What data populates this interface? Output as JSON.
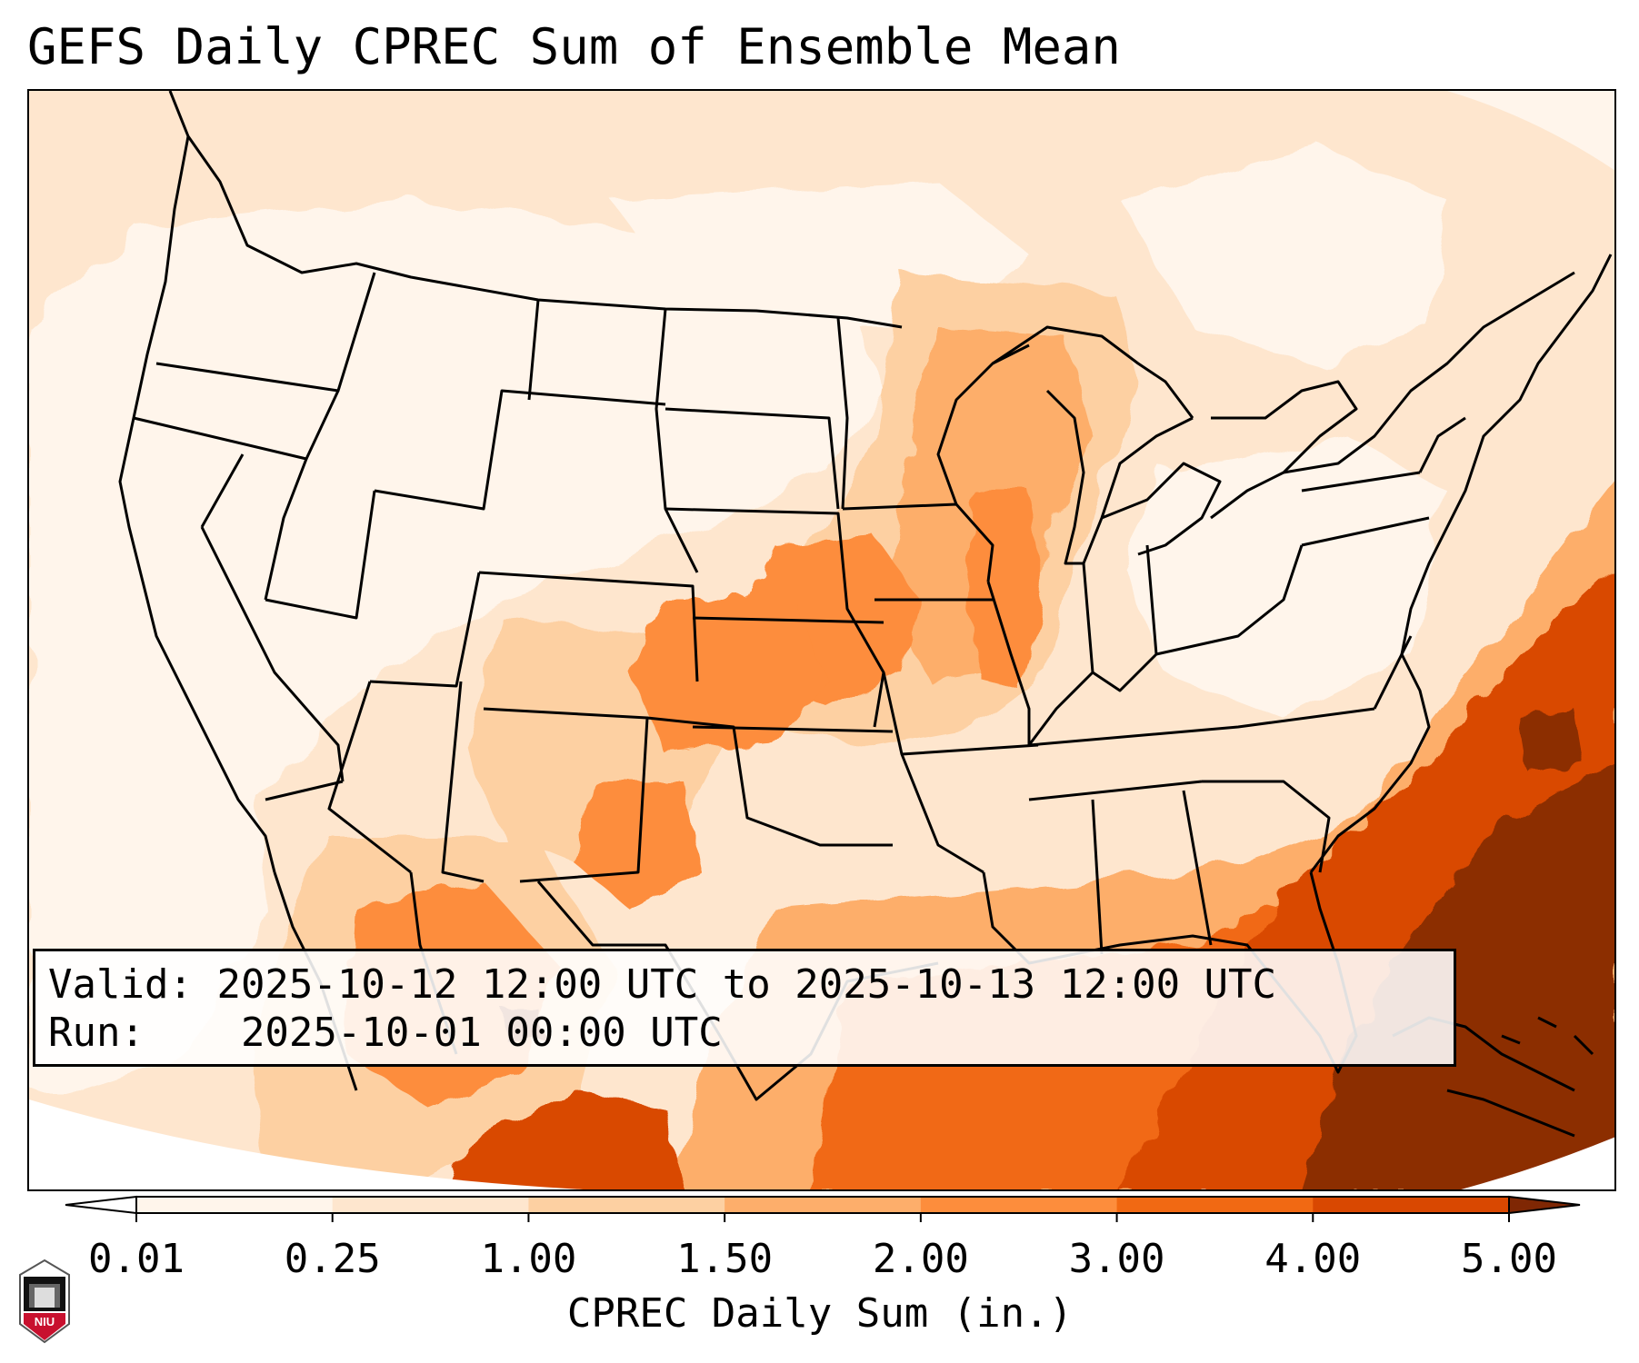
{
  "title": "GEFS Daily CPREC Sum of Ensemble Mean",
  "info": {
    "valid_label": "Valid:",
    "valid_text": "2025-10-12 12:00 UTC to 2025-10-13 12:00 UTC",
    "run_label": "Run:",
    "run_text": "2025-10-01 00:00 UTC"
  },
  "colorbar": {
    "label": "CPREC Daily Sum (in.)",
    "ticks": [
      "0.01",
      "0.25",
      "1.00",
      "1.50",
      "2.00",
      "3.00",
      "4.00",
      "5.00"
    ],
    "colors": [
      "#fff5eb",
      "#fee6ce",
      "#fdd0a2",
      "#fdae6b",
      "#fd8d3c",
      "#f16913",
      "#d94801",
      "#8c2d04"
    ],
    "under_color": "#ffffff",
    "over_color": "#7f2704"
  },
  "map": {
    "projection": "Lambert conformal, CONUS",
    "precip_regions": [
      {
        "name": "Pacific Northwest coast",
        "level": 1
      },
      {
        "name": "Upper Midwest / Great Lakes",
        "level": 3
      },
      {
        "name": "Iowa / Missouri / Illinois",
        "level": 4
      },
      {
        "name": "Kansas / Oklahoma",
        "level": 4
      },
      {
        "name": "West Texas / New Mexico",
        "level": 3
      },
      {
        "name": "Northern Mexico",
        "level": 4
      },
      {
        "name": "Gulf of Mexico",
        "level": 5
      },
      {
        "name": "Western Atlantic off Southeast US",
        "level": 6
      },
      {
        "name": "Bahamas / Caribbean",
        "level": 7
      }
    ]
  },
  "logo": {
    "text": "NIU",
    "colors": [
      "#c8102e",
      "#000000"
    ]
  }
}
